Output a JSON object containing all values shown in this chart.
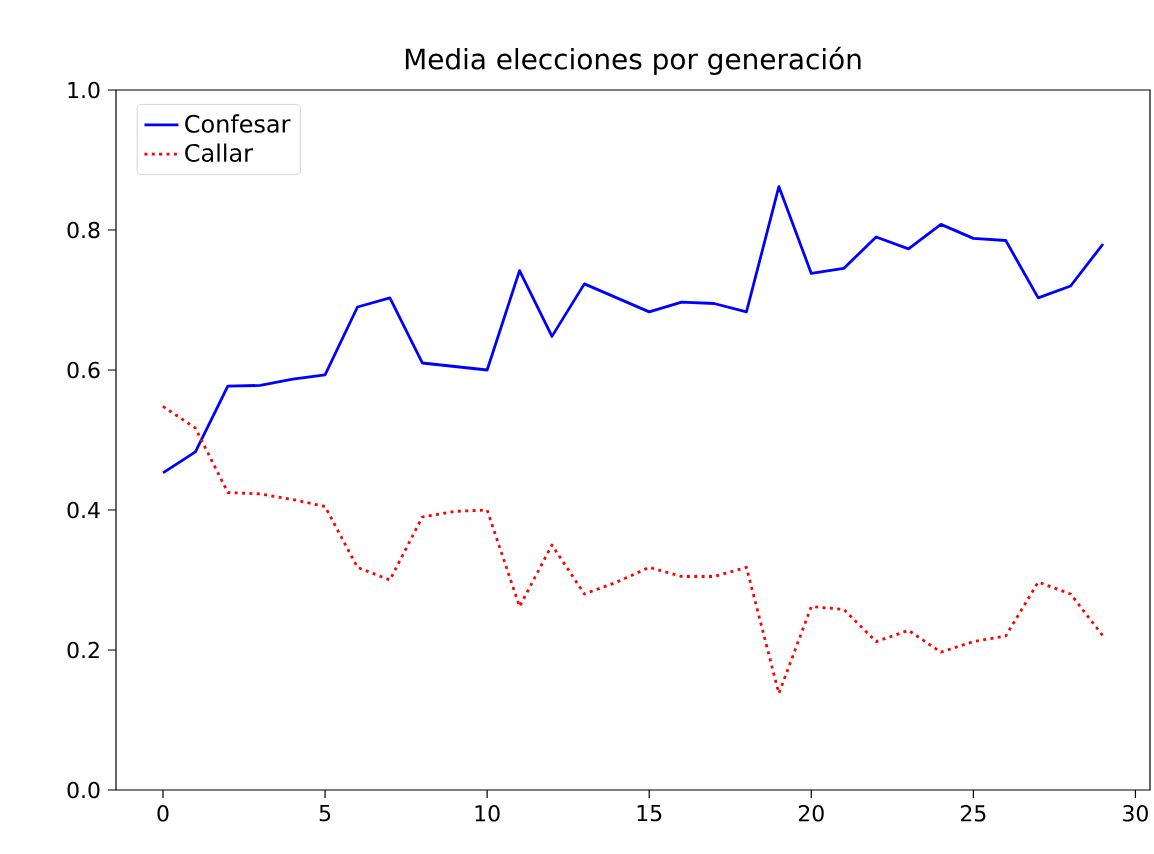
{
  "chart_data": {
    "type": "line",
    "title": "Media elecciones por generación",
    "x": [
      0,
      1,
      2,
      3,
      4,
      5,
      6,
      7,
      8,
      9,
      10,
      11,
      12,
      13,
      14,
      15,
      16,
      17,
      18,
      19,
      20,
      21,
      22,
      23,
      24,
      25,
      26,
      27,
      28,
      29
    ],
    "series": [
      {
        "name": "Confesar",
        "color": "#0000ff",
        "line_style": "solid",
        "values": [
          0.453,
          0.483,
          0.577,
          0.578,
          0.587,
          0.593,
          0.69,
          0.703,
          0.61,
          0.605,
          0.6,
          0.742,
          0.648,
          0.723,
          0.703,
          0.683,
          0.697,
          0.695,
          0.683,
          0.862,
          0.738,
          0.745,
          0.79,
          0.773,
          0.808,
          0.788,
          0.785,
          0.703,
          0.72,
          0.78
        ]
      },
      {
        "name": "Callar",
        "color": "#ff0000",
        "line_style": "dotted",
        "values": [
          0.548,
          0.517,
          0.425,
          0.423,
          0.415,
          0.405,
          0.318,
          0.3,
          0.39,
          0.398,
          0.4,
          0.262,
          0.35,
          0.28,
          0.297,
          0.318,
          0.305,
          0.305,
          0.318,
          0.138,
          0.262,
          0.258,
          0.212,
          0.228,
          0.197,
          0.212,
          0.22,
          0.297,
          0.28,
          0.22
        ]
      }
    ],
    "xlim": [
      -1.45,
      30.45
    ],
    "ylim": [
      0.0,
      1.0
    ],
    "xticks": [
      0,
      5,
      10,
      15,
      20,
      25,
      30
    ],
    "yticks": [
      {
        "value": 0.0,
        "label": "0.0"
      },
      {
        "value": 0.2,
        "label": "0.2"
      },
      {
        "value": 0.4,
        "label": "0.4"
      },
      {
        "value": 0.6,
        "label": "0.6"
      },
      {
        "value": 0.8,
        "label": "0.8"
      },
      {
        "value": 1.0,
        "label": "1.0"
      }
    ],
    "legend": "top left"
  }
}
